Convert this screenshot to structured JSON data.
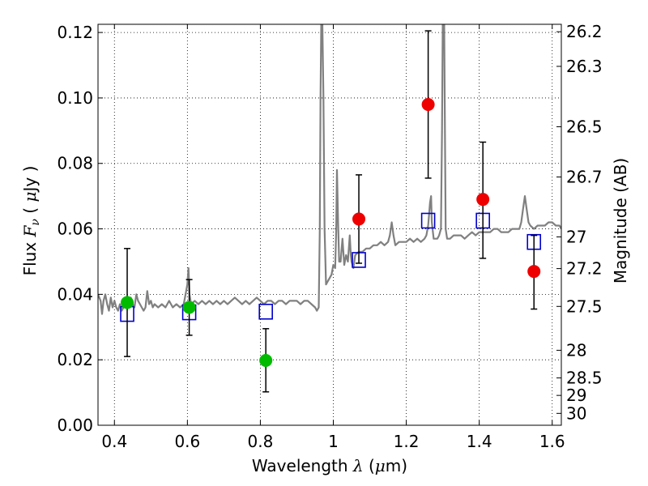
{
  "chart_data": {
    "type": "scatter",
    "title": "",
    "xlabel": "Wavelength  λ (μm)",
    "ylabel": "Flux  Fν  ( μJy )",
    "ylabel_parts": {
      "prefix": "Flux  ",
      "var": "F",
      "sub": "ν",
      "unit_open": "  ( ",
      "mu": "μ",
      "unit_rest": "Jy )"
    },
    "xlabel_parts": {
      "prefix": "Wavelength  ",
      "var": "λ",
      "unit_open": " (",
      "mu": "μ",
      "unit_rest": "m)"
    },
    "y2label": "Magnitude (AB)",
    "xlim": [
      0.355,
      1.625
    ],
    "ylim": [
      0.0,
      0.1225
    ],
    "grid": true,
    "x_ticks": [
      {
        "value": 0.4,
        "label": "0.4"
      },
      {
        "value": 0.6,
        "label": "0.6"
      },
      {
        "value": 0.8,
        "label": "0.8"
      },
      {
        "value": 1.0,
        "label": "1"
      },
      {
        "value": 1.2,
        "label": "1.2"
      },
      {
        "value": 1.4,
        "label": "1.4"
      },
      {
        "value": 1.6,
        "label": "1.6"
      }
    ],
    "y_ticks": [
      {
        "value": 0.0,
        "label": "0.00"
      },
      {
        "value": 0.02,
        "label": "0.02"
      },
      {
        "value": 0.04,
        "label": "0.04"
      },
      {
        "value": 0.06,
        "label": "0.06"
      },
      {
        "value": 0.08,
        "label": "0.08"
      },
      {
        "value": 0.1,
        "label": "0.10"
      },
      {
        "value": 0.12,
        "label": "0.12"
      }
    ],
    "y2_ticks": [
      {
        "mag": 26.2,
        "label": "26.2"
      },
      {
        "mag": 26.3,
        "label": "26.3"
      },
      {
        "mag": 26.5,
        "label": "26.5"
      },
      {
        "mag": 26.7,
        "label": "26.7"
      },
      {
        "mag": 27.0,
        "label": "27"
      },
      {
        "mag": 27.2,
        "label": "27.2"
      },
      {
        "mag": 27.5,
        "label": "27.5"
      },
      {
        "mag": 28.0,
        "label": "28"
      },
      {
        "mag": 28.5,
        "label": "28.5"
      },
      {
        "mag": 29.0,
        "label": "29"
      },
      {
        "mag": 30.0,
        "label": "30"
      }
    ],
    "spectrum": {
      "color": "#808080",
      "points": [
        [
          0.355,
          0.04
        ],
        [
          0.362,
          0.038
        ],
        [
          0.366,
          0.034
        ],
        [
          0.37,
          0.038
        ],
        [
          0.375,
          0.04
        ],
        [
          0.38,
          0.037
        ],
        [
          0.385,
          0.035
        ],
        [
          0.39,
          0.039
        ],
        [
          0.395,
          0.036
        ],
        [
          0.4,
          0.038
        ],
        [
          0.405,
          0.036
        ],
        [
          0.41,
          0.035
        ],
        [
          0.415,
          0.037
        ],
        [
          0.42,
          0.035
        ],
        [
          0.425,
          0.036
        ],
        [
          0.43,
          0.038
        ],
        [
          0.435,
          0.039
        ],
        [
          0.44,
          0.036
        ],
        [
          0.445,
          0.039
        ],
        [
          0.45,
          0.037
        ],
        [
          0.455,
          0.036
        ],
        [
          0.46,
          0.04
        ],
        [
          0.465,
          0.038
        ],
        [
          0.47,
          0.037
        ],
        [
          0.475,
          0.036
        ],
        [
          0.48,
          0.035
        ],
        [
          0.485,
          0.036
        ],
        [
          0.49,
          0.041
        ],
        [
          0.495,
          0.037
        ],
        [
          0.5,
          0.038
        ],
        [
          0.505,
          0.036
        ],
        [
          0.51,
          0.037
        ],
        [
          0.52,
          0.036
        ],
        [
          0.53,
          0.037
        ],
        [
          0.54,
          0.036
        ],
        [
          0.55,
          0.038
        ],
        [
          0.56,
          0.036
        ],
        [
          0.57,
          0.037
        ],
        [
          0.58,
          0.036
        ],
        [
          0.59,
          0.037
        ],
        [
          0.595,
          0.04
        ],
        [
          0.6,
          0.043
        ],
        [
          0.603,
          0.048
        ],
        [
          0.606,
          0.04
        ],
        [
          0.61,
          0.037
        ],
        [
          0.62,
          0.038
        ],
        [
          0.63,
          0.037
        ],
        [
          0.64,
          0.038
        ],
        [
          0.65,
          0.037
        ],
        [
          0.66,
          0.038
        ],
        [
          0.67,
          0.037
        ],
        [
          0.68,
          0.038
        ],
        [
          0.69,
          0.037
        ],
        [
          0.7,
          0.038
        ],
        [
          0.71,
          0.037
        ],
        [
          0.72,
          0.038
        ],
        [
          0.73,
          0.039
        ],
        [
          0.74,
          0.038
        ],
        [
          0.75,
          0.037
        ],
        [
          0.76,
          0.038
        ],
        [
          0.77,
          0.037
        ],
        [
          0.78,
          0.038
        ],
        [
          0.79,
          0.039
        ],
        [
          0.8,
          0.038
        ],
        [
          0.81,
          0.037
        ],
        [
          0.82,
          0.038
        ],
        [
          0.83,
          0.038
        ],
        [
          0.84,
          0.037
        ],
        [
          0.85,
          0.038
        ],
        [
          0.86,
          0.038
        ],
        [
          0.87,
          0.037
        ],
        [
          0.88,
          0.038
        ],
        [
          0.89,
          0.038
        ],
        [
          0.9,
          0.038
        ],
        [
          0.91,
          0.037
        ],
        [
          0.92,
          0.038
        ],
        [
          0.93,
          0.038
        ],
        [
          0.94,
          0.037
        ],
        [
          0.95,
          0.036
        ],
        [
          0.955,
          0.035
        ],
        [
          0.96,
          0.036
        ],
        [
          0.963,
          0.06
        ],
        [
          0.965,
          0.1
        ],
        [
          0.967,
          0.1225
        ],
        [
          0.97,
          0.1225
        ],
        [
          0.973,
          0.1
        ],
        [
          0.976,
          0.06
        ],
        [
          0.98,
          0.043
        ],
        [
          0.985,
          0.044
        ],
        [
          0.99,
          0.045
        ],
        [
          0.995,
          0.046
        ],
        [
          1.0,
          0.049
        ],
        [
          1.005,
          0.048
        ],
        [
          1.008,
          0.06
        ],
        [
          1.01,
          0.078
        ],
        [
          1.013,
          0.062
        ],
        [
          1.016,
          0.05
        ],
        [
          1.02,
          0.05
        ],
        [
          1.025,
          0.057
        ],
        [
          1.03,
          0.049
        ],
        [
          1.035,
          0.052
        ],
        [
          1.04,
          0.05
        ],
        [
          1.045,
          0.058
        ],
        [
          1.048,
          0.052
        ],
        [
          1.05,
          0.05
        ],
        [
          1.055,
          0.048
        ],
        [
          1.06,
          0.052
        ],
        [
          1.07,
          0.053
        ],
        [
          1.08,
          0.053
        ],
        [
          1.09,
          0.054
        ],
        [
          1.1,
          0.054
        ],
        [
          1.11,
          0.055
        ],
        [
          1.12,
          0.055
        ],
        [
          1.13,
          0.056
        ],
        [
          1.14,
          0.055
        ],
        [
          1.15,
          0.056
        ],
        [
          1.155,
          0.058
        ],
        [
          1.16,
          0.062
        ],
        [
          1.165,
          0.058
        ],
        [
          1.17,
          0.055
        ],
        [
          1.18,
          0.056
        ],
        [
          1.19,
          0.056
        ],
        [
          1.2,
          0.056
        ],
        [
          1.21,
          0.057
        ],
        [
          1.22,
          0.056
        ],
        [
          1.23,
          0.057
        ],
        [
          1.24,
          0.056
        ],
        [
          1.25,
          0.057
        ],
        [
          1.255,
          0.058
        ],
        [
          1.26,
          0.061
        ],
        [
          1.265,
          0.068
        ],
        [
          1.268,
          0.07
        ],
        [
          1.27,
          0.062
        ],
        [
          1.275,
          0.057
        ],
        [
          1.28,
          0.057
        ],
        [
          1.285,
          0.057
        ],
        [
          1.29,
          0.058
        ],
        [
          1.295,
          0.06
        ],
        [
          1.298,
          0.09
        ],
        [
          1.3,
          0.1225
        ],
        [
          1.304,
          0.1225
        ],
        [
          1.306,
          0.09
        ],
        [
          1.308,
          0.06
        ],
        [
          1.312,
          0.057
        ],
        [
          1.32,
          0.057
        ],
        [
          1.33,
          0.058
        ],
        [
          1.34,
          0.058
        ],
        [
          1.35,
          0.058
        ],
        [
          1.36,
          0.057
        ],
        [
          1.37,
          0.058
        ],
        [
          1.38,
          0.059
        ],
        [
          1.39,
          0.058
        ],
        [
          1.4,
          0.059
        ],
        [
          1.41,
          0.059
        ],
        [
          1.42,
          0.059
        ],
        [
          1.43,
          0.059
        ],
        [
          1.44,
          0.06
        ],
        [
          1.45,
          0.06
        ],
        [
          1.46,
          0.059
        ],
        [
          1.47,
          0.059
        ],
        [
          1.48,
          0.059
        ],
        [
          1.49,
          0.06
        ],
        [
          1.5,
          0.06
        ],
        [
          1.51,
          0.06
        ],
        [
          1.515,
          0.062
        ],
        [
          1.52,
          0.066
        ],
        [
          1.525,
          0.07
        ],
        [
          1.53,
          0.066
        ],
        [
          1.535,
          0.062
        ],
        [
          1.54,
          0.061
        ],
        [
          1.55,
          0.06
        ],
        [
          1.56,
          0.061
        ],
        [
          1.57,
          0.061
        ],
        [
          1.58,
          0.061
        ],
        [
          1.59,
          0.062
        ],
        [
          1.6,
          0.062
        ],
        [
          1.61,
          0.061
        ],
        [
          1.62,
          0.061
        ],
        [
          1.625,
          0.06
        ]
      ]
    },
    "model_points": {
      "color": "#0000cc",
      "marker": "open-square",
      "x": [
        0.435,
        0.605,
        0.815,
        1.07,
        1.26,
        1.41,
        1.55
      ],
      "y": [
        0.034,
        0.0345,
        0.0347,
        0.0505,
        0.0625,
        0.0625,
        0.056
      ]
    },
    "observed_points": {
      "marker": "filled-circle",
      "points": [
        {
          "x": 0.435,
          "y": 0.0375,
          "err_low": 0.021,
          "err_high": 0.054,
          "color": "#00bb00"
        },
        {
          "x": 0.605,
          "y": 0.036,
          "err_low": 0.0275,
          "err_high": 0.0445,
          "color": "#00bb00"
        },
        {
          "x": 0.815,
          "y": 0.0198,
          "err_low": 0.0102,
          "err_high": 0.0295,
          "color": "#00bb00"
        },
        {
          "x": 1.07,
          "y": 0.063,
          "err_low": 0.0495,
          "err_high": 0.0765,
          "color": "#ee0000"
        },
        {
          "x": 1.26,
          "y": 0.098,
          "err_low": 0.0755,
          "err_high": 0.1205,
          "color": "#ee0000"
        },
        {
          "x": 1.41,
          "y": 0.069,
          "err_low": 0.051,
          "err_high": 0.0865,
          "color": "#ee0000"
        },
        {
          "x": 1.55,
          "y": 0.047,
          "err_low": 0.0355,
          "err_high": 0.058,
          "color": "#ee0000"
        }
      ]
    }
  }
}
